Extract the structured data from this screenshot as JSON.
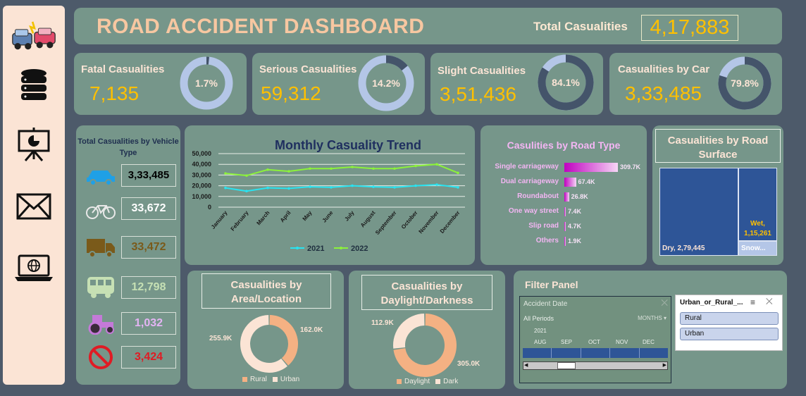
{
  "header": {
    "title": "ROAD ACCIDENT DASHBOARD",
    "total_label": "Total Casualities",
    "total_value": "4,17,883"
  },
  "sidebar": {
    "items": [
      {
        "icon": "car-crash-icon"
      },
      {
        "icon": "database-icon"
      },
      {
        "icon": "presentation-icon"
      },
      {
        "icon": "mail-icon"
      },
      {
        "icon": "laptop-globe-icon"
      }
    ]
  },
  "kpis": [
    {
      "label": "Fatal Casualities",
      "value": "7,135",
      "pct_text": "1.7%",
      "pct": 1.7
    },
    {
      "label": "Serious Casualities",
      "value": "59,312",
      "pct_text": "14.2%",
      "pct": 14.2
    },
    {
      "label": "Slight Casualities",
      "value": "3,51,436",
      "pct_text": "84.1%",
      "pct": 84.1
    },
    {
      "label": "Casualities by Car",
      "value": "3,33,485",
      "pct_text": "79.8%",
      "pct": 79.8
    }
  ],
  "vehicle": {
    "title": "Total Casualities by Vehicle Type",
    "items": [
      {
        "icon": "car-icon",
        "value": "3,33,485",
        "color": "#1fa0e6"
      },
      {
        "icon": "bicycle-icon",
        "value": "33,672",
        "color": "#ffffff"
      },
      {
        "icon": "truck-icon",
        "value": "33,472",
        "color": "#7a5a1a"
      },
      {
        "icon": "bus-icon",
        "value": "12,798",
        "color": "#c6e0b4"
      },
      {
        "icon": "tractor-icon",
        "value": "1,032",
        "color": "#e4b4f4"
      },
      {
        "icon": "no-entry-icon",
        "value": "3,424",
        "color": "#e01b24"
      }
    ]
  },
  "trend": {
    "title": "Monthly Casuality Trend",
    "y_ticks": [
      "50,000",
      "40,000",
      "30,000",
      "20,000",
      "10,000",
      "0"
    ]
  },
  "road_type": {
    "title": "Casulities by Road Type"
  },
  "surface": {
    "title": "Casualities by Road Surface",
    "dry_label": "Dry, 2,79,445",
    "wet_label": "Wet, 1,15,261",
    "snow_label": "Snow..."
  },
  "area": {
    "title": "Casualities by Area/Location",
    "label_urban": "255.9K",
    "label_rural": "162.0K",
    "legend": [
      "Rural",
      "Urban"
    ]
  },
  "daylight": {
    "title": "Casualities by Daylight/Darkness",
    "label_dark": "112.9K",
    "label_day": "305.0K",
    "legend": [
      "Daylight",
      "Dark"
    ]
  },
  "filter": {
    "title": "Filter Panel",
    "timeline_header": "Accident Date",
    "all_periods": "All Periods",
    "months_label": "MONTHS",
    "year": "2021",
    "months": [
      "AUG",
      "SEP",
      "OCT",
      "NOV",
      "DEC"
    ],
    "slicer_title": "Urban_or_Rural_...",
    "slicer_items": [
      "Rural",
      "Urban"
    ]
  },
  "colors": {
    "gold": "#ffc000",
    "panel": "#76968a",
    "ring_light": "#b4c6e7",
    "ring_dark": "#44546a",
    "peach": "#f4b183",
    "cream": "#fbe4d5"
  },
  "chart_data": [
    {
      "type": "line",
      "title": "Monthly Casuality Trend",
      "categories": [
        "January",
        "February",
        "March",
        "April",
        "May",
        "June",
        "July",
        "August",
        "September",
        "October",
        "November",
        "December"
      ],
      "series": [
        {
          "name": "2021",
          "color": "#29e3f0",
          "values": [
            18000,
            15000,
            18000,
            17500,
            19000,
            18500,
            20000,
            19000,
            18500,
            20000,
            21000,
            18500
          ]
        },
        {
          "name": "2022",
          "color": "#8cf23a",
          "values": [
            31500,
            29500,
            35000,
            33500,
            36000,
            36000,
            37500,
            36000,
            36000,
            38500,
            40000,
            32000
          ]
        }
      ],
      "ylim": [
        0,
        50000
      ]
    },
    {
      "type": "bar",
      "title": "Casulities by Road Type",
      "categories": [
        "Single carriageway",
        "Dual carriageway",
        "Roundabout",
        "One way street",
        "Slip road",
        "Others"
      ],
      "values": [
        309.7,
        67.4,
        26.8,
        7.4,
        4.7,
        1.9
      ],
      "value_labels": [
        "309.7K",
        "67.4K",
        "26.8K",
        "7.4K",
        "4.7K",
        "1.9K"
      ]
    },
    {
      "type": "pie",
      "title": "Casualities by Area/Location",
      "categories": [
        "Rural",
        "Urban"
      ],
      "values": [
        162.0,
        255.9
      ],
      "colors": [
        "#f4b183",
        "#fbe4d5"
      ]
    },
    {
      "type": "pie",
      "title": "Casualities by Daylight/Darkness",
      "categories": [
        "Daylight",
        "Dark"
      ],
      "values": [
        305.0,
        112.9
      ],
      "colors": [
        "#f4b183",
        "#fbe4d5"
      ]
    }
  ]
}
